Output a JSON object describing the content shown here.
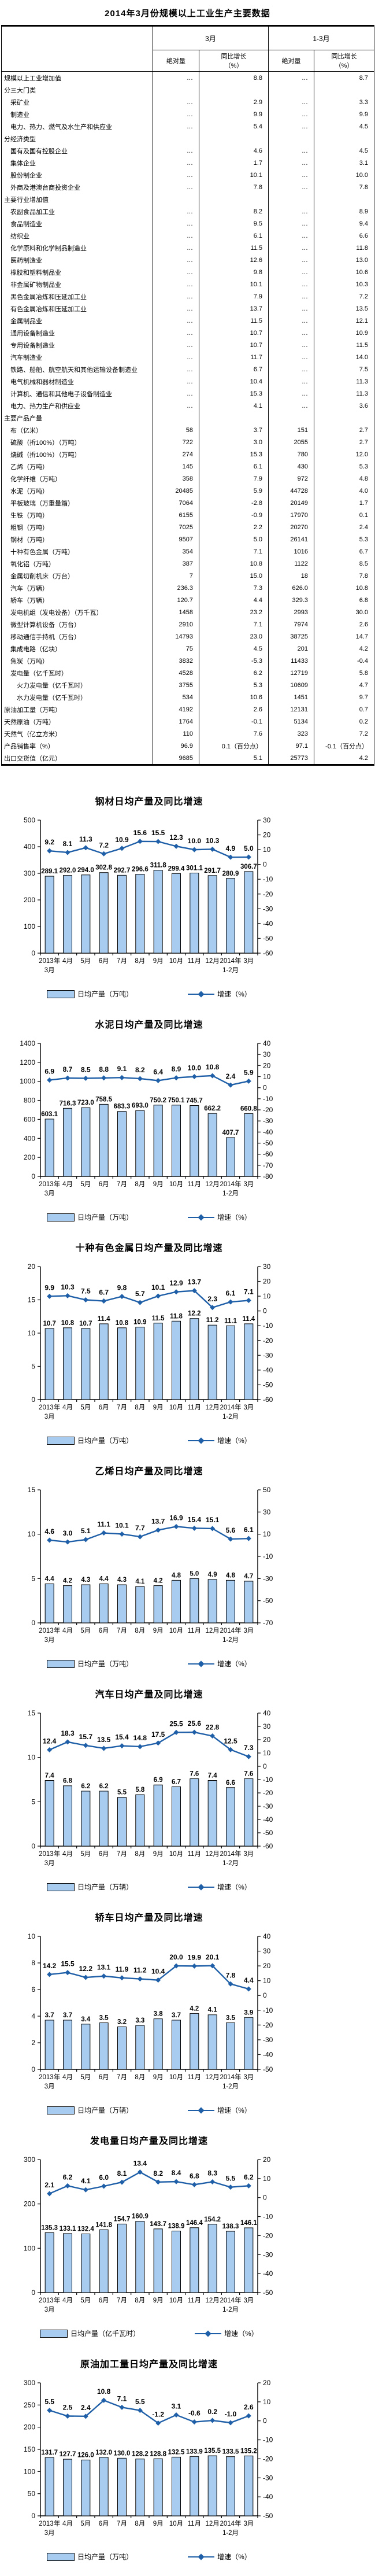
{
  "page_title": "2014年3月份规模以上工业生产主要数据",
  "colors": {
    "bar_fill": "#A8CCF0",
    "bar_border": "#000000",
    "line": "#1F5FA8",
    "text": "#000000"
  },
  "table": {
    "col_groups": [
      "3月",
      "1-3月"
    ],
    "sub_headers": [
      "绝对量",
      "同比增长\n（%）",
      "绝对量",
      "同比增长\n（%）"
    ],
    "rows": [
      {
        "label": "规模以上工业增加值",
        "indent": 0,
        "values": [
          "…",
          "8.8",
          "…",
          "8.7"
        ]
      },
      {
        "label": "分三大门类",
        "indent": 0,
        "values": [
          "",
          "",
          "",
          ""
        ]
      },
      {
        "label": "采矿业",
        "indent": 1,
        "values": [
          "…",
          "2.9",
          "…",
          "3.3"
        ]
      },
      {
        "label": "制造业",
        "indent": 1,
        "values": [
          "…",
          "9.9",
          "…",
          "9.9"
        ]
      },
      {
        "label": "电力、热力、燃气及水生产和供应业",
        "indent": 1,
        "values": [
          "…",
          "5.4",
          "…",
          "4.5"
        ]
      },
      {
        "label": "分经济类型",
        "indent": 0,
        "values": [
          "",
          "",
          "",
          ""
        ]
      },
      {
        "label": "国有及国有控股企业",
        "indent": 1,
        "values": [
          "…",
          "4.6",
          "…",
          "4.5"
        ]
      },
      {
        "label": "集体企业",
        "indent": 1,
        "values": [
          "…",
          "1.7",
          "…",
          "3.1"
        ]
      },
      {
        "label": "股份制企业",
        "indent": 1,
        "values": [
          "…",
          "10.1",
          "…",
          "10.0"
        ]
      },
      {
        "label": "外商及港澳台商投资企业",
        "indent": 1,
        "values": [
          "…",
          "7.8",
          "…",
          "7.8"
        ]
      },
      {
        "label": "主要行业增加值",
        "indent": 0,
        "values": [
          "",
          "",
          "",
          ""
        ]
      },
      {
        "label": "农副食品加工业",
        "indent": 1,
        "values": [
          "…",
          "8.2",
          "…",
          "8.9"
        ]
      },
      {
        "label": "食品制造业",
        "indent": 1,
        "values": [
          "…",
          "9.5",
          "…",
          "9.4"
        ]
      },
      {
        "label": "纺织业",
        "indent": 1,
        "values": [
          "…",
          "6.1",
          "…",
          "6.6"
        ]
      },
      {
        "label": "化学原料和化学制品制造业",
        "indent": 1,
        "values": [
          "…",
          "11.5",
          "…",
          "11.8"
        ]
      },
      {
        "label": "医药制造业",
        "indent": 1,
        "values": [
          "…",
          "12.6",
          "…",
          "13.0"
        ]
      },
      {
        "label": "橡胶和塑料制品业",
        "indent": 1,
        "values": [
          "…",
          "9.8",
          "…",
          "10.6"
        ]
      },
      {
        "label": "非金属矿物制品业",
        "indent": 1,
        "values": [
          "…",
          "10.1",
          "…",
          "10.3"
        ]
      },
      {
        "label": "黑色金属冶炼和压延加工业",
        "indent": 1,
        "values": [
          "…",
          "7.9",
          "…",
          "7.2"
        ]
      },
      {
        "label": "有色金属冶炼和压延加工业",
        "indent": 1,
        "values": [
          "…",
          "13.7",
          "…",
          "13.5"
        ]
      },
      {
        "label": "金属制品业",
        "indent": 1,
        "values": [
          "…",
          "11.5",
          "…",
          "12.1"
        ]
      },
      {
        "label": "通用设备制造业",
        "indent": 1,
        "values": [
          "…",
          "10.7",
          "…",
          "10.9"
        ]
      },
      {
        "label": "专用设备制造业",
        "indent": 1,
        "values": [
          "…",
          "10.7",
          "…",
          "11.5"
        ]
      },
      {
        "label": "汽车制造业",
        "indent": 1,
        "values": [
          "…",
          "11.7",
          "…",
          "14.0"
        ]
      },
      {
        "label": "铁路、船舶、航空航天和其他运输设备制造业",
        "indent": 1,
        "values": [
          "…",
          "6.7",
          "…",
          "7.5"
        ]
      },
      {
        "label": "电气机械和器材制造业",
        "indent": 1,
        "values": [
          "…",
          "10.4",
          "…",
          "11.3"
        ]
      },
      {
        "label": "计算机、通信和其他电子设备制造业",
        "indent": 1,
        "values": [
          "…",
          "15.3",
          "…",
          "11.3"
        ]
      },
      {
        "label": "电力、热力生产和供应业",
        "indent": 1,
        "values": [
          "…",
          "4.1",
          "…",
          "3.6"
        ]
      },
      {
        "label": "主要产品产量",
        "indent": 0,
        "values": [
          "",
          "",
          "",
          ""
        ]
      },
      {
        "label": "布（亿米）",
        "indent": 1,
        "values": [
          "58",
          "3.7",
          "151",
          "2.7"
        ]
      },
      {
        "label": "硫酸（折100%）（万吨）",
        "indent": 1,
        "values": [
          "722",
          "3.0",
          "2055",
          "2.7"
        ]
      },
      {
        "label": "烧碱（折100%）（万吨）",
        "indent": 1,
        "values": [
          "274",
          "15.3",
          "780",
          "12.0"
        ]
      },
      {
        "label": "乙烯（万吨）",
        "indent": 1,
        "values": [
          "145",
          "6.1",
          "430",
          "5.3"
        ]
      },
      {
        "label": "化学纤维（万吨）",
        "indent": 1,
        "values": [
          "358",
          "7.9",
          "972",
          "4.8"
        ]
      },
      {
        "label": "水泥（万吨）",
        "indent": 1,
        "values": [
          "20485",
          "5.9",
          "44728",
          "4.0"
        ]
      },
      {
        "label": "平板玻璃（万重量箱）",
        "indent": 1,
        "values": [
          "7064",
          "-2.8",
          "20149",
          "1.7"
        ]
      },
      {
        "label": "生铁（万吨）",
        "indent": 1,
        "values": [
          "6155",
          "-0.9",
          "17970",
          "0.1"
        ]
      },
      {
        "label": "粗钢（万吨）",
        "indent": 1,
        "values": [
          "7025",
          "2.2",
          "20270",
          "2.4"
        ]
      },
      {
        "label": "钢材（万吨）",
        "indent": 1,
        "values": [
          "9507",
          "5.0",
          "26141",
          "5.3"
        ]
      },
      {
        "label": "十种有色金属（万吨）",
        "indent": 1,
        "values": [
          "354",
          "7.1",
          "1016",
          "6.7"
        ]
      },
      {
        "label": "氧化铝（万吨）",
        "indent": 1,
        "values": [
          "387",
          "10.8",
          "1122",
          "8.5"
        ]
      },
      {
        "label": "金属切削机床（万台）",
        "indent": 1,
        "values": [
          "7",
          "15.0",
          "18",
          "7.8"
        ]
      },
      {
        "label": "汽车（万辆）",
        "indent": 1,
        "values": [
          "236.3",
          "7.3",
          "626.0",
          "10.8"
        ]
      },
      {
        "label": "轿车（万辆）",
        "indent": 1,
        "values": [
          "120.7",
          "4.4",
          "329.3",
          "6.8"
        ]
      },
      {
        "label": "发电机组（发电设备）（万千瓦）",
        "indent": 1,
        "values": [
          "1458",
          "23.2",
          "2993",
          "30.0"
        ]
      },
      {
        "label": "微型计算机设备（万台）",
        "indent": 1,
        "values": [
          "2910",
          "7.1",
          "7974",
          "2.6"
        ]
      },
      {
        "label": "移动通信手持机（万台）",
        "indent": 1,
        "values": [
          "14793",
          "23.0",
          "38725",
          "14.7"
        ]
      },
      {
        "label": "集成电路（亿块）",
        "indent": 1,
        "values": [
          "75",
          "4.5",
          "201",
          "4.2"
        ]
      },
      {
        "label": "焦炭（万吨）",
        "indent": 1,
        "values": [
          "3832",
          "-5.3",
          "11433",
          "-0.4"
        ]
      },
      {
        "label": "发电量（亿千瓦时）",
        "indent": 1,
        "values": [
          "4528",
          "6.2",
          "12719",
          "5.8"
        ]
      },
      {
        "label": "火力发电量（亿千瓦时）",
        "indent": 2,
        "values": [
          "3755",
          "5.3",
          "10609",
          "4.7"
        ]
      },
      {
        "label": "水力发电量（亿千瓦时）",
        "indent": 2,
        "values": [
          "534",
          "10.6",
          "1451",
          "9.7"
        ]
      },
      {
        "label": "原油加工量（万吨）",
        "indent": 0,
        "values": [
          "4192",
          "2.6",
          "12131",
          "0.7"
        ]
      },
      {
        "label": "天然原油（万吨）",
        "indent": 0,
        "values": [
          "1764",
          "-0.1",
          "5134",
          "0.2"
        ]
      },
      {
        "label": "天然气（亿立方米）",
        "indent": 0,
        "values": [
          "110",
          "7.6",
          "323",
          "7.2"
        ]
      },
      {
        "label": "产品销售率（%）",
        "indent": 0,
        "values": [
          "96.9",
          "0.1（百分点）",
          "97.1",
          "-0.1（百分点）"
        ]
      },
      {
        "label": "出口交货值（亿元）",
        "indent": 0,
        "values": [
          "9685",
          "5.1",
          "25773",
          "4.2"
        ]
      }
    ]
  },
  "chart_categories": [
    "2013年\n3月",
    "4月",
    "5月",
    "6月",
    "7月",
    "8月",
    "9月",
    "10月",
    "11月",
    "12月",
    "2014年\n1-2月",
    "3月"
  ],
  "chart_data": [
    {
      "type": "bar",
      "title": "钢材日均产量及同比增速",
      "categories": [
        "2013年\n3月",
        "4月",
        "5月",
        "6月",
        "7月",
        "8月",
        "9月",
        "10月",
        "11月",
        "12月",
        "2014年\n1-2月",
        "3月"
      ],
      "series": [
        {
          "name": "日均产量（万吨）",
          "type": "bar",
          "values": [
            289.1,
            292.0,
            294.0,
            302.8,
            292.7,
            296.6,
            311.8,
            299.4,
            301.1,
            291.7,
            280.9,
            306.7
          ]
        },
        {
          "name": "增速（%）",
          "type": "line",
          "values": [
            9.2,
            8.1,
            11.3,
            7.2,
            10.9,
            15.6,
            15.5,
            12.3,
            10.0,
            10.3,
            4.9,
            5.0
          ]
        }
      ],
      "left_axis": {
        "min": 0,
        "max": 500,
        "step": 100
      },
      "right_axis": {
        "min": -60,
        "max": 30,
        "step": 10
      },
      "legend_position": "bottom"
    },
    {
      "type": "bar",
      "title": "水泥日均产量及同比增速",
      "categories": [
        "2013年\n3月",
        "4月",
        "5月",
        "6月",
        "7月",
        "8月",
        "9月",
        "10月",
        "11月",
        "12月",
        "2014年\n1-2月",
        "3月"
      ],
      "series": [
        {
          "name": "日均产量（万吨）",
          "type": "bar",
          "values": [
            603.1,
            716.3,
            723.0,
            758.5,
            683.3,
            693.0,
            750.2,
            750.1,
            745.7,
            662.2,
            407.7,
            660.8
          ]
        },
        {
          "name": "增速（%）",
          "type": "line",
          "values": [
            6.9,
            8.7,
            8.5,
            8.8,
            9.1,
            8.2,
            6.4,
            8.9,
            10.0,
            10.8,
            2.4,
            5.9
          ]
        }
      ],
      "left_axis": {
        "min": 0,
        "max": 1400,
        "step": 200
      },
      "right_axis": {
        "min": -80,
        "max": 40,
        "step": 10
      },
      "legend_position": "bottom"
    },
    {
      "type": "bar",
      "title": "十种有色金属日均产量及同比增速",
      "categories": [
        "2013年\n3月",
        "4月",
        "5月",
        "6月",
        "7月",
        "8月",
        "9月",
        "10月",
        "11月",
        "12月",
        "2014年\n1-2月",
        "3月"
      ],
      "series": [
        {
          "name": "日均产量（万吨）",
          "type": "bar",
          "values": [
            10.7,
            10.8,
            10.7,
            11.4,
            10.8,
            10.9,
            11.5,
            11.8,
            12.2,
            11.2,
            11.1,
            11.4
          ]
        },
        {
          "name": "增速（%）",
          "type": "line",
          "values": [
            9.9,
            10.3,
            7.5,
            6.7,
            9.8,
            5.7,
            10.1,
            12.9,
            13.7,
            2.3,
            6.1,
            7.1
          ]
        }
      ],
      "left_axis": {
        "min": 0,
        "max": 20,
        "step": 5
      },
      "right_axis": {
        "min": -60,
        "max": 30,
        "step": 10
      },
      "legend_position": "bottom"
    },
    {
      "type": "bar",
      "title": "乙烯日均产量及同比增速",
      "categories": [
        "2013年\n3月",
        "4月",
        "5月",
        "6月",
        "7月",
        "8月",
        "9月",
        "10月",
        "11月",
        "12月",
        "2014年\n1-2月",
        "3月"
      ],
      "series": [
        {
          "name": "日均产量（万吨）",
          "type": "bar",
          "values": [
            4.4,
            4.2,
            4.3,
            4.4,
            4.3,
            4.1,
            4.2,
            4.8,
            5.0,
            4.9,
            4.8,
            4.7
          ]
        },
        {
          "name": "增速（%）",
          "type": "line",
          "values": [
            4.6,
            3.0,
            5.1,
            11.1,
            10.1,
            7.7,
            13.7,
            16.9,
            15.4,
            15.1,
            5.6,
            6.1
          ]
        }
      ],
      "left_axis": {
        "min": 0,
        "max": 15,
        "step": 5
      },
      "right_axis": {
        "min": -70,
        "max": 50,
        "step": 20
      },
      "legend_position": "bottom"
    },
    {
      "type": "bar",
      "title": "汽车日均产量及同比增速",
      "categories": [
        "2013年\n3月",
        "4月",
        "5月",
        "6月",
        "7月",
        "8月",
        "9月",
        "10月",
        "11月",
        "12月",
        "2014年\n1-2月",
        "3月"
      ],
      "series": [
        {
          "name": "日均产量（万辆）",
          "type": "bar",
          "values": [
            7.4,
            6.8,
            6.2,
            6.2,
            5.5,
            5.8,
            6.9,
            6.7,
            7.6,
            7.4,
            6.6,
            7.6
          ]
        },
        {
          "name": "增速（%）",
          "type": "line",
          "values": [
            12.4,
            18.3,
            15.7,
            13.5,
            15.4,
            14.8,
            17.5,
            25.5,
            25.6,
            22.8,
            12.5,
            7.3
          ]
        }
      ],
      "left_axis": {
        "min": 0,
        "max": 15,
        "step": 5
      },
      "right_axis": {
        "min": -60,
        "max": 40,
        "step": 10
      },
      "legend_position": "bottom"
    },
    {
      "type": "bar",
      "title": "轿车日均产量及同比增速",
      "categories": [
        "2013年\n3月",
        "4月",
        "5月",
        "6月",
        "7月",
        "8月",
        "9月",
        "10月",
        "11月",
        "12月",
        "2014年\n1-2月",
        "3月"
      ],
      "series": [
        {
          "name": "日均产量（万辆）",
          "type": "bar",
          "values": [
            3.7,
            3.7,
            3.4,
            3.5,
            3.2,
            3.3,
            3.8,
            3.7,
            4.2,
            4.1,
            3.5,
            3.9
          ]
        },
        {
          "name": "增速（%）",
          "type": "line",
          "values": [
            14.2,
            15.5,
            12.2,
            13.1,
            11.9,
            11.2,
            10.4,
            20.0,
            19.9,
            20.1,
            7.8,
            4.4
          ]
        }
      ],
      "left_axis": {
        "min": 0,
        "max": 10,
        "step": 2
      },
      "right_axis": {
        "min": -50,
        "max": 40,
        "step": 10
      },
      "legend_position": "bottom"
    },
    {
      "type": "bar",
      "title": "发电量日均产量及同比增速",
      "categories": [
        "2013年\n3月",
        "4月",
        "5月",
        "6月",
        "7月",
        "8月",
        "9月",
        "10月",
        "11月",
        "12月",
        "2014年\n1-2月",
        "3月"
      ],
      "series": [
        {
          "name": "日均产量（亿千瓦时）",
          "type": "bar",
          "values": [
            135.3,
            133.1,
            132.4,
            141.8,
            154.7,
            160.9,
            143.7,
            138.9,
            146.4,
            154.2,
            138.3,
            146.1
          ]
        },
        {
          "name": "增速（%）",
          "type": "line",
          "values": [
            2.1,
            6.2,
            4.1,
            6.0,
            8.1,
            13.4,
            8.2,
            8.4,
            6.8,
            8.3,
            5.5,
            6.2
          ]
        }
      ],
      "left_axis": {
        "min": 0,
        "max": 300,
        "step": 100
      },
      "right_axis": {
        "min": -50,
        "max": 20,
        "step": 10
      },
      "legend_position": "bottom"
    },
    {
      "type": "bar",
      "title": "原油加工量日均产量及同比增速",
      "categories": [
        "2013年\n3月",
        "4月",
        "5月",
        "6月",
        "7月",
        "8月",
        "9月",
        "10月",
        "11月",
        "12月",
        "2014年\n1-2月",
        "3月"
      ],
      "series": [
        {
          "name": "日均产量（万吨）",
          "type": "bar",
          "values": [
            131.7,
            127.7,
            126.0,
            132.0,
            130.0,
            128.2,
            128.8,
            132.5,
            133.9,
            135.5,
            133.5,
            135.2
          ]
        },
        {
          "name": "增速（%）",
          "type": "line",
          "values": [
            5.5,
            2.5,
            2.4,
            10.8,
            7.1,
            5.5,
            -1.2,
            3.1,
            -0.6,
            0.2,
            -1.0,
            2.6
          ]
        }
      ],
      "left_axis": {
        "min": 0,
        "max": 300,
        "step": 50
      },
      "right_axis": {
        "min": -50,
        "max": 20,
        "step": 10
      },
      "legend_position": "bottom"
    }
  ]
}
